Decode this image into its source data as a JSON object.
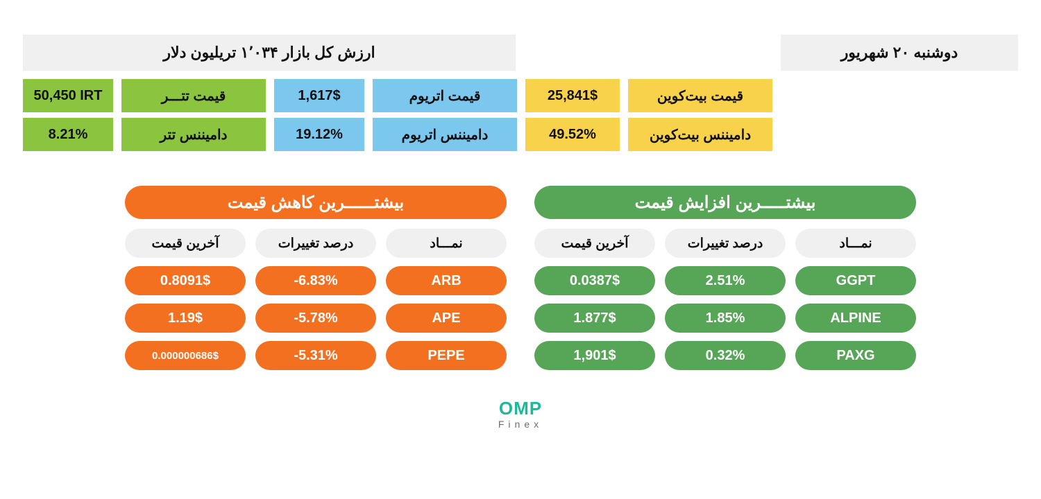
{
  "colors": {
    "bg": "#ffffff",
    "header_bg": "#f0f0f0",
    "yellow": "#f8d24a",
    "blue": "#7cc7ee",
    "lime": "#8bc53f",
    "gainer_green": "#57a557",
    "loser_orange": "#f37021",
    "text_dark": "#111111",
    "logo_teal": "#1fb89a",
    "logo_sub": "#6d6d6d"
  },
  "header": {
    "market_cap_label": "ارزش کل بازار ۱٬۰۳۴ تریلیون دلار",
    "date_label": "دوشنبه ۲۰ شهریور"
  },
  "stats": {
    "btc": {
      "price_label": "قیمت بیت‌کوین",
      "price_value": "25,841$",
      "dom_label": "دامیننس بیت‌کوین",
      "dom_value": "49.52%"
    },
    "eth": {
      "price_label": "قیمت اتریوم",
      "price_value": "1,617$",
      "dom_label": "دامیننس اتریوم",
      "dom_value": "19.12%"
    },
    "usdt": {
      "price_label": "قیمت تتـــر",
      "price_value": "50,450 IRT",
      "dom_label": "دامیننس تتر",
      "dom_value": "8.21%"
    }
  },
  "gainers": {
    "title": "بیشتـــــرین افزایش قیمت",
    "columns": {
      "symbol": "نمـــاد",
      "change": "درصد تغییرات",
      "price": "آخرین قیمت"
    },
    "rows": [
      {
        "symbol": "GGPT",
        "change": "2.51%",
        "price": "0.0387$"
      },
      {
        "symbol": "ALPINE",
        "change": "1.85%",
        "price": "1.877$"
      },
      {
        "symbol": "PAXG",
        "change": "0.32%",
        "price": "1,901$"
      }
    ]
  },
  "losers": {
    "title": "بیشتــــــرین کاهش قیمت",
    "columns": {
      "symbol": "نمـــاد",
      "change": "درصد تغییرات",
      "price": "آخرین قیمت"
    },
    "rows": [
      {
        "symbol": "ARB",
        "change": "-6.83%",
        "price": "0.8091$"
      },
      {
        "symbol": "APE",
        "change": "-5.78%",
        "price": "1.19$"
      },
      {
        "symbol": "PEPE",
        "change": "-5.31%",
        "price": "0.000000686$"
      }
    ]
  },
  "logo": {
    "top": "OMP",
    "sub": "Finex"
  }
}
